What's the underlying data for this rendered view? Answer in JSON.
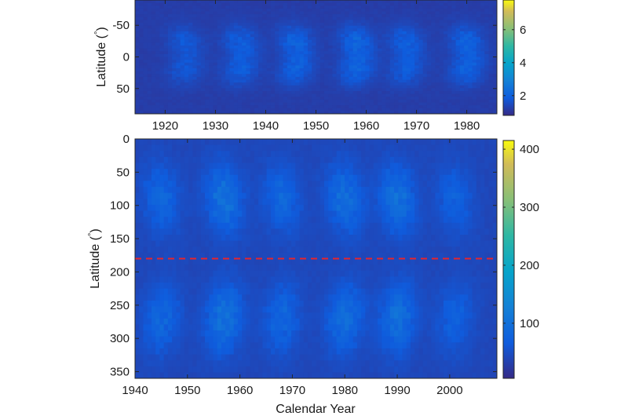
{
  "chart_data": [
    {
      "type": "heatmap",
      "title": "",
      "xlabel": "",
      "ylabel": "Latitude (°)",
      "ylabel_parts": {
        "main": "Latitude (",
        "degree": "°",
        "close": ")"
      },
      "xlim": [
        1914,
        1986
      ],
      "ylim": [
        -90,
        90
      ],
      "y_reversed": true,
      "x_ticks": [
        1920,
        1930,
        1940,
        1950,
        1960,
        1970,
        1980
      ],
      "x_tick_labels": [
        "1920",
        "1930",
        "1940",
        "1950",
        "1960",
        "1970",
        "1980"
      ],
      "y_ticks": [
        -50,
        0,
        50
      ],
      "y_tick_labels": [
        "-50",
        "0",
        "50"
      ],
      "colorbar": {
        "range": [
          0.8,
          7.8
        ],
        "ticks": [
          2,
          4,
          6
        ],
        "tick_labels": [
          "2",
          "4",
          "6"
        ],
        "colormap": "parula"
      },
      "activity_cycles": [
        {
          "center_year": 1924,
          "peak_value": 1.9
        },
        {
          "center_year": 1935,
          "peak_value": 2.1
        },
        {
          "center_year": 1946,
          "peak_value": 2.2
        },
        {
          "center_year": 1958,
          "peak_value": 2.3
        },
        {
          "center_year": 1968,
          "peak_value": 2.1
        },
        {
          "center_year": 1980,
          "peak_value": 2.2
        }
      ],
      "background_value": 1.2,
      "band_center_latitudes": [
        -25,
        20
      ],
      "grid": false
    },
    {
      "type": "heatmap",
      "title": "",
      "xlabel": "Calendar Year",
      "ylabel": "Latitude (°)",
      "ylabel_parts": {
        "main": "Latitude (",
        "degree": "°",
        "close": ")"
      },
      "xlim": [
        1940,
        2009
      ],
      "ylim": [
        0,
        360
      ],
      "y_reversed": true,
      "x_ticks": [
        1940,
        1950,
        1960,
        1970,
        1980,
        1990,
        2000
      ],
      "x_tick_labels": [
        "1940",
        "1950",
        "1960",
        "1970",
        "1980",
        "1990",
        "2000"
      ],
      "y_ticks": [
        0,
        50,
        100,
        150,
        200,
        250,
        300,
        350
      ],
      "y_tick_labels": [
        "0",
        "50",
        "100",
        "150",
        "200",
        "250",
        "300",
        "350"
      ],
      "colorbar": {
        "range": [
          5,
          415
        ],
        "ticks": [
          100,
          200,
          300,
          400
        ],
        "tick_labels": [
          "100",
          "200",
          "300",
          "400"
        ],
        "colormap": "parula"
      },
      "activity_cycles": [
        {
          "center_year": 1945,
          "peak_value": 95
        },
        {
          "center_year": 1957,
          "peak_value": 120
        },
        {
          "center_year": 1968,
          "peak_value": 95
        },
        {
          "center_year": 1980,
          "peak_value": 110
        },
        {
          "center_year": 1990,
          "peak_value": 115
        },
        {
          "center_year": 2001,
          "peak_value": 85
        }
      ],
      "background_value": 40,
      "band_center_latitudes": [
        90,
        270
      ],
      "reference_line": {
        "y": 180,
        "color": "#e8242c",
        "style": "dashed"
      },
      "grid": false
    }
  ]
}
